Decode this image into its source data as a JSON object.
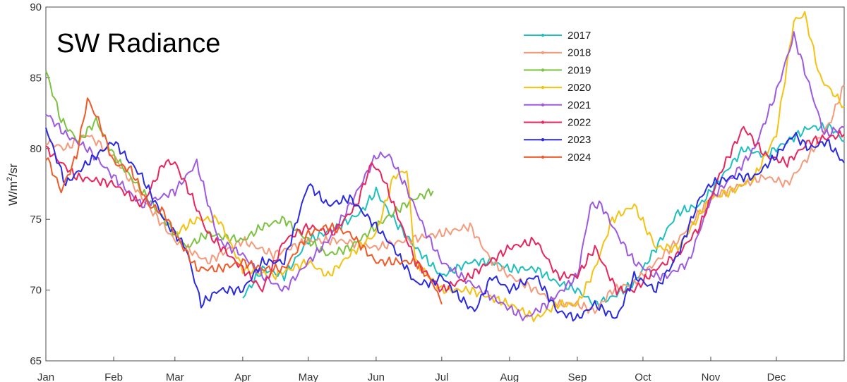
{
  "chart_data": {
    "type": "line",
    "title": "SW Radiance",
    "xlabel": "",
    "ylabel": "W/m²/sr",
    "ylabel_parts": {
      "pre": "W/m",
      "sup": "2",
      "post": "/sr"
    },
    "ylim": [
      65,
      90
    ],
    "yticks": [
      65,
      70,
      75,
      80,
      85,
      90
    ],
    "xlim": [
      1,
      366
    ],
    "months": [
      {
        "label": "Jan",
        "day": 1
      },
      {
        "label": "Feb",
        "day": 32
      },
      {
        "label": "Mar",
        "day": 60
      },
      {
        "label": "Apr",
        "day": 91
      },
      {
        "label": "May",
        "day": 121
      },
      {
        "label": "Jun",
        "day": 152
      },
      {
        "label": "Jul",
        "day": 182
      },
      {
        "label": "Aug",
        "day": 213
      },
      {
        "label": "Sep",
        "day": 244
      },
      {
        "label": "Oct",
        "day": 274
      },
      {
        "label": "Nov",
        "day": 305
      },
      {
        "label": "Dec",
        "day": 335
      }
    ],
    "legend_position": "top-center",
    "series": [
      {
        "name": "2017",
        "color": "#1fbfbf",
        "x": [
          91,
          100,
          110,
          121,
          135,
          145,
          152,
          160,
          170,
          182,
          195,
          205,
          213,
          225,
          235,
          244,
          252,
          260,
          270,
          280,
          290,
          300,
          310,
          320,
          330,
          340,
          350,
          360,
          366
        ],
        "y": [
          69.5,
          71.5,
          71,
          73.5,
          74.5,
          75.5,
          77,
          75,
          73,
          71,
          72,
          72,
          71.5,
          71.5,
          70.5,
          70,
          69,
          69.5,
          70.5,
          73,
          75.5,
          76,
          78,
          80,
          79.5,
          80.5,
          81.5,
          81.5,
          80.5
        ]
      },
      {
        "name": "2018",
        "color": "#f59a7a",
        "x": [
          1,
          10,
          20,
          32,
          45,
          60,
          75,
          91,
          105,
          121,
          135,
          152,
          165,
          182,
          195,
          205,
          213,
          225,
          235,
          244,
          252,
          260,
          270,
          280,
          290,
          305,
          320,
          330,
          340,
          350,
          360,
          366
        ],
        "y": [
          80.5,
          80,
          81,
          79.5,
          76.5,
          73.5,
          72,
          73.5,
          72.5,
          73.5,
          73.5,
          73,
          73.5,
          74,
          74.5,
          72,
          71,
          70,
          69,
          69,
          68.5,
          70,
          70.5,
          72,
          73.5,
          76.5,
          77.5,
          78,
          77.5,
          79.5,
          82,
          84.5
        ]
      },
      {
        "name": "2019",
        "color": "#7cc242",
        "x": [
          1,
          8,
          16,
          24,
          32,
          45,
          55,
          65,
          75,
          91,
          100,
          110,
          121,
          130,
          140,
          152,
          160,
          170,
          178
        ],
        "y": [
          85.5,
          82,
          80.5,
          82,
          79.5,
          77,
          75,
          73,
          74,
          73.5,
          74.5,
          75,
          73.5,
          72.5,
          73,
          74.5,
          75.5,
          76.5,
          77
        ]
      },
      {
        "name": "2020",
        "color": "#f5c211",
        "x": [
          60,
          70,
          80,
          91,
          105,
          121,
          130,
          140,
          152,
          160,
          166,
          170,
          182,
          195,
          213,
          225,
          235,
          244,
          252,
          260,
          270,
          280,
          290,
          305,
          315,
          325,
          335,
          343,
          348,
          355,
          366
        ],
        "y": [
          74,
          75,
          75,
          71.5,
          71,
          72,
          71,
          72.5,
          74,
          78,
          78.5,
          72,
          70,
          70,
          69,
          68,
          69,
          69,
          71.5,
          75,
          76,
          73,
          73,
          76.5,
          77,
          78,
          81,
          89,
          89.5,
          85,
          83
        ]
      },
      {
        "name": "2021",
        "color": "#9d5ae0",
        "x": [
          1,
          10,
          20,
          32,
          45,
          60,
          70,
          80,
          91,
          100,
          110,
          121,
          130,
          140,
          152,
          158,
          165,
          175,
          182,
          195,
          210,
          220,
          230,
          244,
          250,
          255,
          262,
          270,
          280,
          285,
          295,
          305,
          315,
          325,
          335,
          343,
          350,
          357,
          366
        ],
        "y": [
          82.5,
          81,
          80,
          78,
          76,
          77,
          79,
          73.5,
          72.5,
          71,
          70,
          72,
          73.5,
          76,
          79.5,
          79.5,
          77.5,
          74,
          72,
          70.5,
          69,
          68,
          69,
          71,
          76,
          76,
          74,
          72,
          71,
          71,
          72,
          76.5,
          78,
          80,
          84,
          88,
          84.5,
          81,
          81.5
        ]
      },
      {
        "name": "2022",
        "color": "#e8265e",
        "x": [
          1,
          15,
          32,
          45,
          55,
          60,
          68,
          75,
          91,
          100,
          110,
          121,
          132,
          143,
          150,
          155,
          160,
          170,
          182,
          195,
          213,
          225,
          235,
          244,
          252,
          262,
          270,
          280,
          290,
          300,
          310,
          320,
          330,
          340,
          350,
          366
        ],
        "y": [
          80,
          78,
          77.5,
          76,
          79,
          79,
          76.5,
          74,
          71.5,
          70,
          73.5,
          74.5,
          74,
          76,
          79,
          78,
          76,
          72,
          70,
          71,
          73,
          73.5,
          71,
          71,
          73,
          70,
          70,
          71.5,
          72.5,
          74.5,
          78.5,
          81.5,
          79.5,
          79,
          80.5,
          81
        ]
      },
      {
        "name": "2023",
        "color": "#2a2ae0",
        "x": [
          1,
          10,
          20,
          32,
          45,
          55,
          65,
          72,
          80,
          91,
          100,
          110,
          121,
          130,
          140,
          152,
          160,
          170,
          178,
          182,
          190,
          197,
          205,
          213,
          225,
          235,
          244,
          252,
          262,
          270,
          280,
          290,
          300,
          305,
          315,
          325,
          335,
          343,
          350,
          358,
          366
        ],
        "y": [
          81.5,
          77.5,
          79,
          80.5,
          78,
          75,
          73,
          69,
          70,
          70,
          72,
          72,
          77.5,
          76,
          76.5,
          74.5,
          73,
          70.5,
          70.5,
          71,
          69.5,
          68.5,
          71,
          70,
          71,
          68.5,
          68,
          69,
          68,
          71,
          70,
          72.5,
          76.5,
          77.5,
          78,
          78,
          79.5,
          81,
          80,
          80.5,
          79
        ]
      },
      {
        "name": "2024",
        "color": "#f05a28",
        "x": [
          1,
          8,
          15,
          20,
          25,
          32,
          40,
          48,
          55,
          60,
          70,
          80,
          91,
          100,
          110,
          121,
          130,
          140,
          152,
          162,
          170,
          178,
          182
        ],
        "y": [
          79.5,
          77,
          79.5,
          83.5,
          82,
          79,
          78.5,
          76,
          75.5,
          74,
          71.5,
          71.5,
          72,
          71.5,
          71.5,
          74,
          74.5,
          74,
          72,
          72,
          72,
          70.5,
          69
        ]
      }
    ]
  }
}
